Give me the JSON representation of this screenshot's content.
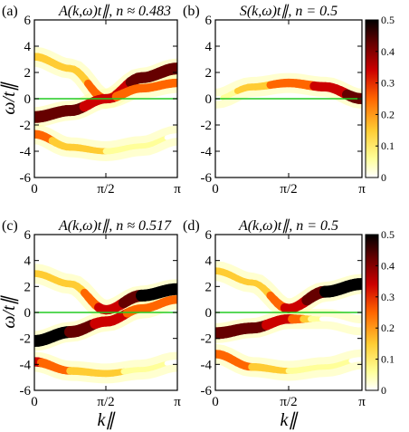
{
  "colors": {
    "colormap": [
      "#ffffff",
      "#ffff99",
      "#ffcc33",
      "#ff6600",
      "#cc0000",
      "#660000",
      "#000000"
    ],
    "fermi_line": "#22cc22"
  },
  "chart_data": [
    {
      "type": "heatmap",
      "panel_label": "(a)",
      "title": "A(k,ω)t∥, n ≈ 0.483",
      "xlabel": "",
      "ylabel": "ω/t∥",
      "xlim": [
        0,
        3.1416
      ],
      "ylim": [
        -6,
        6
      ],
      "xticks": [
        "0",
        "π/2",
        "π"
      ],
      "yticks": [
        "-6",
        "-4",
        "-2",
        "0",
        "2",
        "4",
        "6"
      ],
      "fermi_level": 0,
      "bands": [
        {
          "name": "upper",
          "x": [
            0,
            0.79,
            1.57,
            2.36,
            3.14
          ],
          "y": [
            3.2,
            2.3,
            0.0,
            1.6,
            2.3
          ],
          "intensity": [
            0.25,
            0.2,
            0.3,
            0.45,
            0.5
          ]
        },
        {
          "name": "lower-main",
          "x": [
            0,
            0.79,
            1.57,
            2.36,
            3.14
          ],
          "y": [
            -1.4,
            -0.9,
            0.0,
            0.8,
            1.2
          ],
          "intensity": [
            0.5,
            0.45,
            0.35,
            0.3,
            0.3
          ]
        },
        {
          "name": "shadow",
          "x": [
            0,
            0.79,
            1.57,
            2.36,
            3.14
          ],
          "y": [
            -2.7,
            -3.7,
            -4.0,
            -3.6,
            -2.8
          ],
          "intensity": [
            0.3,
            0.2,
            0.15,
            0.1,
            0.05
          ]
        }
      ]
    },
    {
      "type": "heatmap",
      "panel_label": "(b)",
      "title": "S(k,ω)t∥, n = 0.5",
      "xlabel": "",
      "ylabel": "",
      "xlim": [
        0,
        3.1416
      ],
      "ylim": [
        -6,
        6
      ],
      "xticks": [
        "0",
        "π/2",
        "π"
      ],
      "yticks": [
        "-6",
        "-4",
        "-2",
        "0",
        "2",
        "4",
        "6"
      ],
      "fermi_level": 0,
      "bands": [
        {
          "name": "spinon",
          "x": [
            0,
            0.79,
            1.57,
            2.36,
            3.14
          ],
          "y": [
            0.0,
            0.9,
            1.2,
            0.9,
            0.0
          ],
          "intensity": [
            0.05,
            0.2,
            0.3,
            0.35,
            0.45
          ]
        }
      ],
      "colorbar": {
        "ticks": [
          "0",
          "0.1",
          "0.2",
          "0.3",
          "0.4",
          "0.5"
        ],
        "range": [
          0,
          0.5
        ]
      }
    },
    {
      "type": "heatmap",
      "panel_label": "(c)",
      "title": "A(k,ω)t∥, n ≈ 0.517",
      "xlabel": "k∥",
      "ylabel": "ω/t∥",
      "xlim": [
        0,
        3.1416
      ],
      "ylim": [
        -6,
        6
      ],
      "xticks": [
        "0",
        "π/2",
        "π"
      ],
      "yticks": [
        "-6",
        "-4",
        "-2",
        "0",
        "2",
        "4",
        "6"
      ],
      "fermi_level": 0,
      "bands": [
        {
          "name": "upper",
          "x": [
            0,
            0.79,
            1.57,
            2.36,
            3.14
          ],
          "y": [
            3.0,
            2.2,
            0.2,
            1.3,
            1.8
          ],
          "intensity": [
            0.2,
            0.2,
            0.35,
            0.5,
            0.5
          ]
        },
        {
          "name": "lower-main",
          "x": [
            0,
            0.79,
            1.57,
            2.36,
            3.14
          ],
          "y": [
            -2.2,
            -1.5,
            -0.7,
            0.3,
            1.0
          ],
          "intensity": [
            0.5,
            0.5,
            0.4,
            0.3,
            0.3
          ]
        },
        {
          "name": "shadow",
          "x": [
            0,
            0.79,
            1.57,
            2.36,
            3.14
          ],
          "y": [
            -3.8,
            -4.5,
            -4.7,
            -4.4,
            -3.8
          ],
          "intensity": [
            0.35,
            0.25,
            0.2,
            0.1,
            0.05
          ]
        }
      ]
    },
    {
      "type": "heatmap",
      "panel_label": "(d)",
      "title": "A(k,ω)t∥, n = 0.5",
      "xlabel": "k∥",
      "ylabel": "",
      "xlim": [
        0,
        3.1416
      ],
      "ylim": [
        -6,
        6
      ],
      "xticks": [
        "0",
        "π/2",
        "π"
      ],
      "yticks": [
        "-6",
        "-4",
        "-2",
        "0",
        "2",
        "4",
        "6"
      ],
      "fermi_level": 0,
      "bands": [
        {
          "name": "upper",
          "x": [
            0,
            0.79,
            1.57,
            2.36,
            3.14
          ],
          "y": [
            3.2,
            2.3,
            0.3,
            1.6,
            2.2
          ],
          "intensity": [
            0.2,
            0.15,
            0.35,
            0.5,
            0.5
          ]
        },
        {
          "name": "lower-main",
          "x": [
            0,
            0.79,
            1.57,
            2.36,
            3.14
          ],
          "y": [
            -1.6,
            -1.2,
            -0.5,
            -0.5,
            -1.0
          ],
          "intensity": [
            0.5,
            0.45,
            0.35,
            0.05,
            0.02
          ]
        },
        {
          "name": "shadow",
          "x": [
            0,
            0.79,
            1.57,
            2.36,
            3.14
          ],
          "y": [
            -3.2,
            -4.2,
            -4.5,
            -4.2,
            -3.6
          ],
          "intensity": [
            0.3,
            0.25,
            0.15,
            0.1,
            0.05
          ]
        }
      ],
      "colorbar": {
        "ticks": [
          "0",
          "0.1",
          "0.2",
          "0.3",
          "0.4",
          "0.5"
        ],
        "range": [
          0,
          0.5
        ]
      }
    }
  ]
}
